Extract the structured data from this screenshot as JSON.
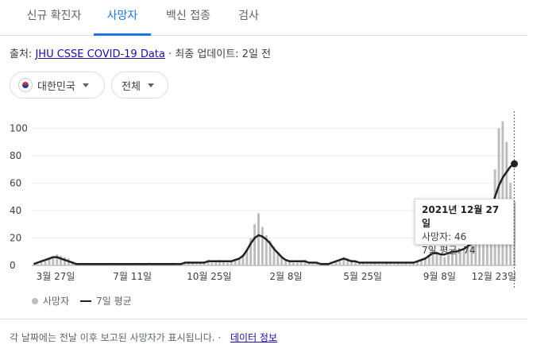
{
  "tabs": [
    {
      "label": "신규 확진자",
      "active": false
    },
    {
      "label": "사망자",
      "active": true
    },
    {
      "label": "백신 접종",
      "active": false
    },
    {
      "label": "검사",
      "active": false
    }
  ],
  "source": {
    "prefix": "출처:",
    "link": "JHU CSSE COVID-19 Data",
    "suffix": "· 최종 업데이트: 2일 전"
  },
  "filters": {
    "region": {
      "label": "대한민국",
      "icon": "south-korea-flag-icon"
    },
    "scope": {
      "label": "전체"
    }
  },
  "chart_data": {
    "type": "bar",
    "title": "",
    "ylim": [
      0,
      110
    ],
    "yticks": [
      0,
      20,
      40,
      60,
      80,
      100
    ],
    "xtick_labels": [
      "3월 27일",
      "7월 11일",
      "10월 25일",
      "2월 8일",
      "5월 25일",
      "9월 8일",
      "12월 23일"
    ],
    "series": [
      {
        "name": "사망자",
        "kind": "bar",
        "color": "#bdbdbd",
        "values": [
          0,
          1,
          2,
          3,
          5,
          6,
          8,
          7,
          6,
          5,
          3,
          2,
          1,
          1,
          0,
          0,
          1,
          0,
          0,
          0,
          1,
          0,
          0,
          0,
          1,
          0,
          0,
          1,
          0,
          0,
          2,
          1,
          0,
          1,
          0,
          1,
          2,
          1,
          1,
          2,
          3,
          2,
          1,
          2,
          3,
          4,
          2,
          3,
          4,
          3,
          2,
          3,
          4,
          5,
          8,
          12,
          20,
          30,
          38,
          28,
          22,
          18,
          14,
          10,
          6,
          4,
          3,
          2,
          2,
          3,
          4,
          2,
          1,
          2,
          1,
          1,
          0,
          1,
          2,
          3,
          6,
          5,
          4,
          3,
          2,
          2,
          1,
          1,
          2,
          1,
          1,
          2,
          1,
          1,
          2,
          1,
          2,
          1,
          2,
          3,
          4,
          6,
          8,
          12,
          10,
          7,
          6,
          8,
          10,
          9,
          12,
          11,
          14,
          16,
          18,
          20,
          25,
          35,
          48,
          70,
          100,
          105,
          90,
          60,
          46
        ]
      },
      {
        "name": "7일 평균",
        "kind": "line",
        "color": "#202124",
        "values": [
          1,
          2,
          3,
          4,
          5,
          6,
          6,
          5,
          4,
          3,
          2,
          1,
          1,
          1,
          1,
          1,
          1,
          1,
          1,
          1,
          1,
          1,
          1,
          1,
          1,
          1,
          1,
          1,
          1,
          1,
          1,
          1,
          1,
          1,
          1,
          1,
          1,
          1,
          1,
          2,
          2,
          2,
          2,
          2,
          2,
          3,
          3,
          3,
          3,
          3,
          3,
          3,
          4,
          5,
          7,
          11,
          16,
          20,
          22,
          21,
          19,
          16,
          12,
          9,
          6,
          4,
          3,
          3,
          3,
          3,
          3,
          2,
          2,
          2,
          1,
          1,
          1,
          2,
          3,
          4,
          5,
          4,
          3,
          3,
          2,
          2,
          2,
          2,
          2,
          2,
          2,
          2,
          2,
          2,
          2,
          2,
          2,
          2,
          2,
          3,
          4,
          5,
          7,
          9,
          9,
          8,
          8,
          9,
          10,
          10,
          11,
          12,
          14,
          16,
          18,
          21,
          26,
          33,
          41,
          50,
          58,
          64,
          68,
          72,
          74
        ]
      }
    ],
    "highlight": {
      "date": "2021년 12월 27일",
      "deaths_label": "사망자: 46",
      "avg_label": "7일 평균: 74"
    },
    "legend": [
      "사망자",
      "7일 평균"
    ]
  },
  "footer": {
    "text": "각 날짜에는 전날 이후 보고된 사망자가 표시됩니다. ·",
    "link": "데이터 정보"
  }
}
